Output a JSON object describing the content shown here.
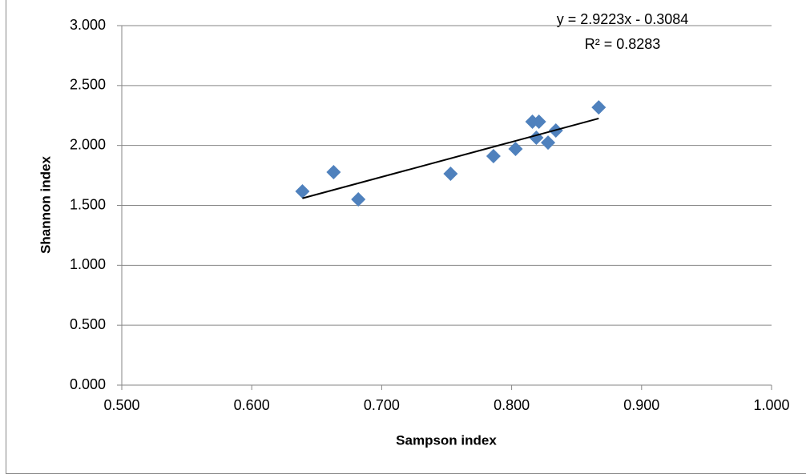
{
  "chart_data": {
    "type": "scatter",
    "x_label": "Sampson index",
    "y_label": "Shannon index",
    "series": [
      {
        "color": "#4f81bd",
        "x": [
          0.639,
          0.663,
          0.682,
          0.753,
          0.786,
          0.803,
          0.816,
          0.821,
          0.819,
          0.828,
          0.834,
          0.867
        ],
        "values": [
          1.617,
          1.777,
          1.55,
          1.764,
          1.911,
          1.971,
          2.198,
          2.198,
          2.065,
          2.024,
          2.125,
          2.318
        ]
      }
    ],
    "trendline": {
      "slope": 2.9223,
      "intercept": -0.3084,
      "label": "y = 2.9223x - 0.3084",
      "r2": 0.8283,
      "r2_label": "R² = 0.8283"
    },
    "xlim": [
      0.5,
      1.0
    ],
    "xticks": [
      {
        "value": 0.5,
        "label": "0.500"
      },
      {
        "value": 0.6,
        "label": "0.600"
      },
      {
        "value": 0.7,
        "label": "0.700"
      },
      {
        "value": 0.8,
        "label": "0.800"
      },
      {
        "value": 0.9,
        "label": "0.900"
      },
      {
        "value": 1.0,
        "label": "1.000"
      }
    ],
    "ylim": [
      0,
      3
    ],
    "yticks": [
      {
        "value": 0,
        "label": "0.000"
      },
      {
        "value": 0.5,
        "label": "0.500"
      },
      {
        "value": 1.0,
        "label": "1.000"
      },
      {
        "value": 1.5,
        "label": "1.500"
      },
      {
        "value": 2.0,
        "label": "2.000"
      },
      {
        "value": 2.5,
        "label": "2.500"
      },
      {
        "value": 3.0,
        "label": "3.000"
      }
    ],
    "grid": true
  }
}
